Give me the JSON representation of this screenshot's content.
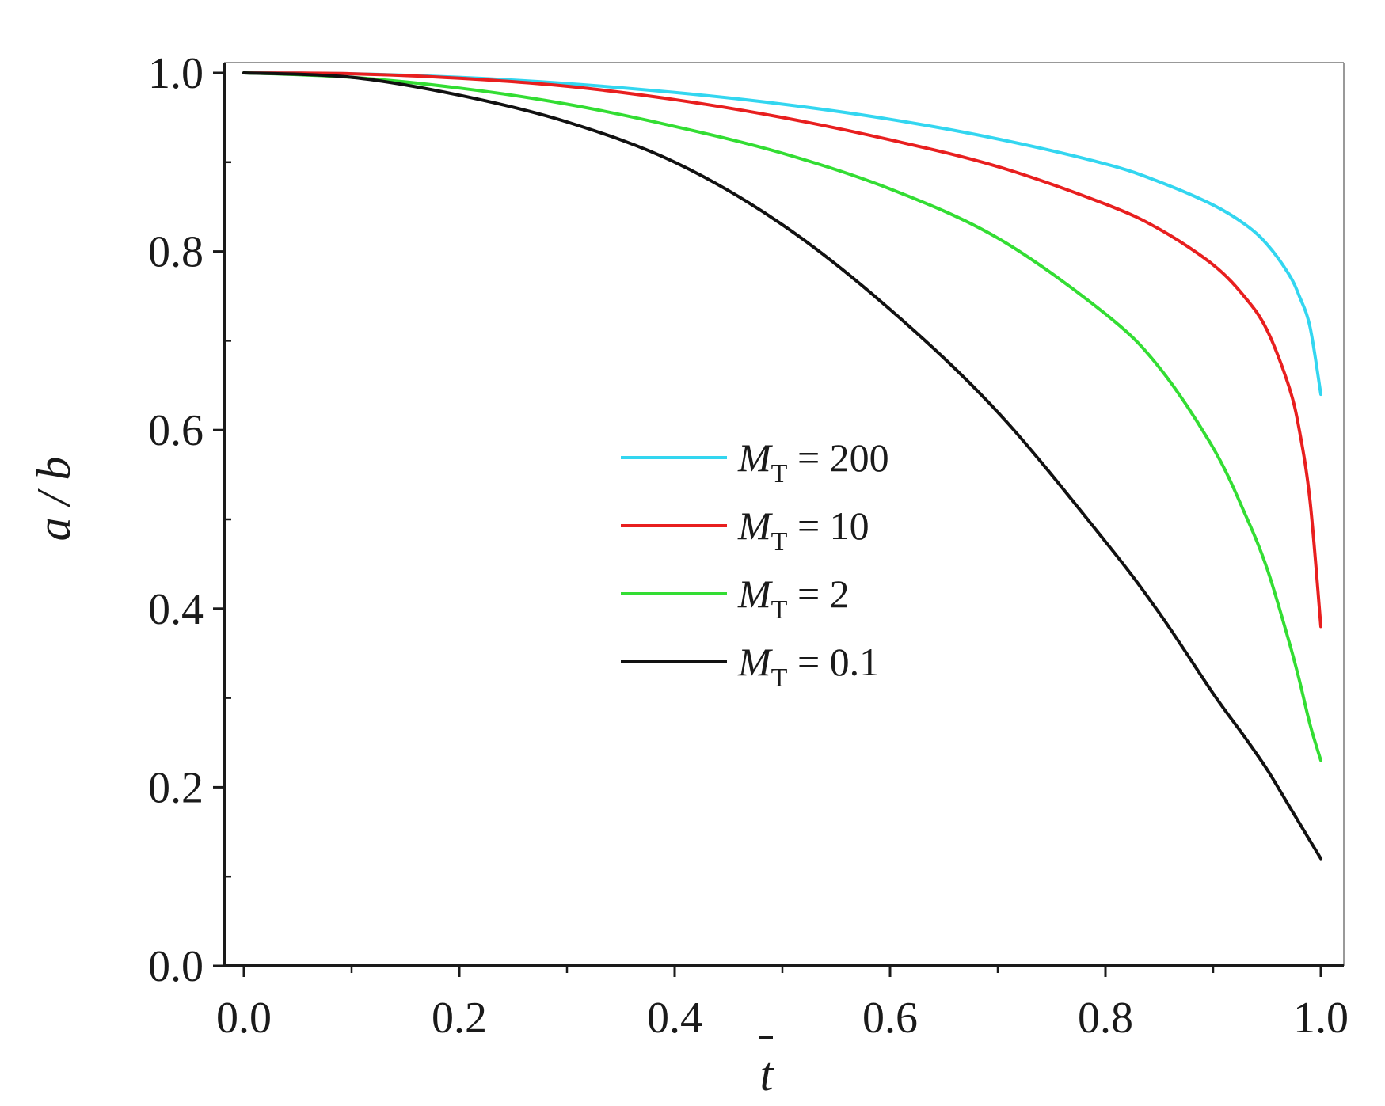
{
  "chart_data": {
    "type": "line",
    "title": "",
    "xlabel": "t",
    "xlabel_overbar": true,
    "ylabel": "a / b",
    "xlim": [
      0.0,
      1.0
    ],
    "ylim": [
      0.0,
      1.0
    ],
    "xticks": [
      "0.0",
      "0.2",
      "0.4",
      "0.6",
      "0.8",
      "1.0"
    ],
    "yticks": [
      "0.0",
      "0.2",
      "0.4",
      "0.6",
      "0.8",
      "1.0"
    ],
    "grid": false,
    "legend_position": "center-right",
    "series": [
      {
        "name_symbol": "M",
        "name_subscript": "T",
        "name_rest": " = 200",
        "color": "#33d6f0",
        "x": [
          0.0,
          0.1,
          0.2,
          0.3,
          0.4,
          0.5,
          0.6,
          0.7,
          0.8,
          0.85,
          0.9,
          0.93,
          0.95,
          0.97,
          0.98,
          0.99,
          1.0
        ],
        "y": [
          1.0,
          0.999,
          0.995,
          0.988,
          0.978,
          0.965,
          0.948,
          0.926,
          0.898,
          0.878,
          0.852,
          0.83,
          0.808,
          0.775,
          0.75,
          0.715,
          0.64
        ]
      },
      {
        "name_symbol": "M",
        "name_subscript": "T",
        "name_rest": " = 10",
        "color": "#e81f1f",
        "x": [
          0.0,
          0.1,
          0.2,
          0.3,
          0.4,
          0.5,
          0.6,
          0.7,
          0.8,
          0.85,
          0.9,
          0.93,
          0.95,
          0.97,
          0.98,
          0.99,
          1.0
        ],
        "y": [
          1.0,
          0.999,
          0.994,
          0.985,
          0.97,
          0.95,
          0.925,
          0.895,
          0.853,
          0.825,
          0.785,
          0.748,
          0.712,
          0.65,
          0.6,
          0.52,
          0.38
        ]
      },
      {
        "name_symbol": "M",
        "name_subscript": "T",
        "name_rest": " = 2",
        "color": "#33dd33",
        "x": [
          0.0,
          0.1,
          0.2,
          0.3,
          0.4,
          0.5,
          0.6,
          0.7,
          0.8,
          0.85,
          0.9,
          0.93,
          0.95,
          0.97,
          0.98,
          0.99,
          1.0
        ],
        "y": [
          1.0,
          0.995,
          0.983,
          0.965,
          0.94,
          0.91,
          0.87,
          0.815,
          0.73,
          0.67,
          0.58,
          0.505,
          0.445,
          0.365,
          0.32,
          0.27,
          0.23
        ]
      },
      {
        "name_symbol": "M",
        "name_subscript": "T",
        "name_rest": " = 0.1",
        "color": "#111111",
        "x": [
          0.0,
          0.1,
          0.2,
          0.3,
          0.4,
          0.5,
          0.6,
          0.7,
          0.8,
          0.85,
          0.9,
          0.93,
          0.95,
          0.97,
          0.98,
          0.99,
          1.0
        ],
        "y": [
          1.0,
          0.995,
          0.975,
          0.945,
          0.9,
          0.83,
          0.735,
          0.62,
          0.475,
          0.395,
          0.305,
          0.255,
          0.22,
          0.18,
          0.16,
          0.14,
          0.12
        ]
      }
    ]
  }
}
